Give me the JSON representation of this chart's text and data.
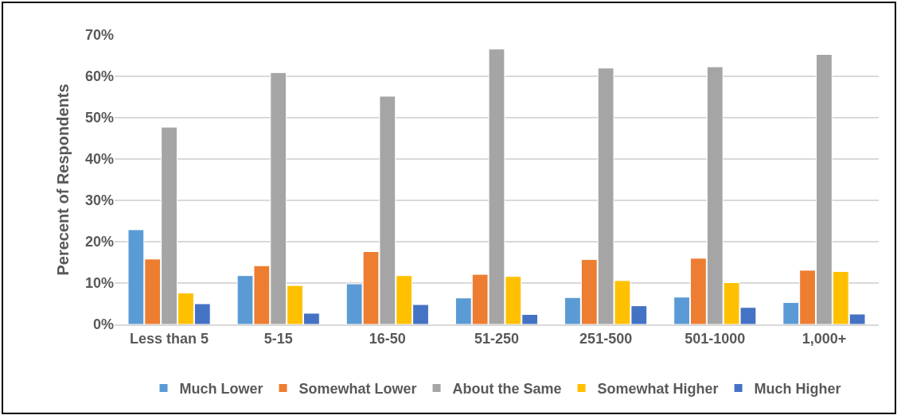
{
  "chart_data": {
    "type": "bar",
    "ylabel": "Perecent of Respondents",
    "categories": [
      "Less than 5",
      "5-15",
      "16-50",
      "51-250",
      "251-500",
      "501-1000",
      "1,000+"
    ],
    "series": [
      {
        "name": "Much Lower",
        "color": "#5b9bd5",
        "values": [
          22.9,
          11.8,
          9.8,
          6.4,
          6.5,
          6.6,
          5.3
        ]
      },
      {
        "name": "Somewhat Lower",
        "color": "#ed7d31",
        "values": [
          15.8,
          14.2,
          17.6,
          12.1,
          15.7,
          16.0,
          13.1
        ]
      },
      {
        "name": "About the Same",
        "color": "#a5a5a5",
        "values": [
          47.7,
          60.9,
          55.2,
          66.6,
          62.0,
          62.3,
          65.3
        ]
      },
      {
        "name": "Somewhat Higher",
        "color": "#ffc000",
        "values": [
          7.6,
          9.4,
          11.8,
          11.6,
          10.6,
          10.1,
          12.8
        ]
      },
      {
        "name": "Much Higher",
        "color": "#4472c4",
        "values": [
          5.0,
          2.7,
          4.8,
          2.4,
          4.5,
          4.1,
          2.5
        ]
      }
    ],
    "ylim": [
      0,
      70
    ],
    "yticks": [
      {
        "value": 0,
        "label": "0%"
      },
      {
        "value": 10,
        "label": "10%"
      },
      {
        "value": 20,
        "label": "20%"
      },
      {
        "value": 30,
        "label": "30%"
      },
      {
        "value": 40,
        "label": "40%"
      },
      {
        "value": 50,
        "label": "50%"
      },
      {
        "value": 60,
        "label": "60%"
      },
      {
        "value": 70,
        "label": "70%"
      }
    ],
    "grid": "y",
    "legend": "bottom"
  }
}
